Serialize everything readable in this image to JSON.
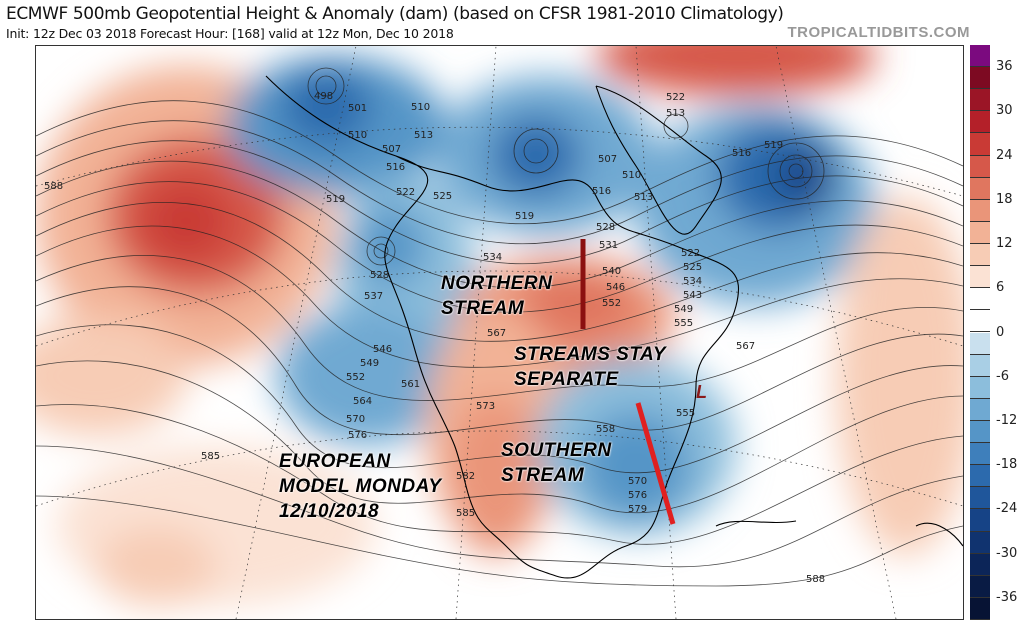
{
  "header": {
    "title": "ECMWF 500mb Geopotential Height & Anomaly (dam) (based on CFSR 1981-2010 Climatology)",
    "subtitle": "Init: 12z Dec 03 2018   Forecast Hour: [168]   valid at 12z Mon, Dec 10 2018",
    "brand": "TROPICALTIDBITS.COM"
  },
  "colorbar": {
    "ticks": [
      "36",
      "30",
      "24",
      "18",
      "12",
      "6",
      "0",
      "-6",
      "-12",
      "-18",
      "-24",
      "-30",
      "-36"
    ],
    "colors": [
      "#7b0a7f",
      "#7d0a22",
      "#9b1526",
      "#b42029",
      "#c93a35",
      "#d6584a",
      "#e0765f",
      "#ea9579",
      "#f2b296",
      "#f7ccb5",
      "#fbe2d4",
      "#ffffff",
      "#ffffff",
      "#c9e0ee",
      "#a9cfe5",
      "#8cbedc",
      "#6fa9d2",
      "#5595c7",
      "#3e7fbb",
      "#2c6aad",
      "#1f569b",
      "#164386",
      "#10336f",
      "#0c2558",
      "#091b44",
      "#071334"
    ]
  },
  "map": {
    "contour_labels": [
      "498",
      "501",
      "510",
      "507",
      "510",
      "513",
      "516",
      "519",
      "522",
      "525",
      "528",
      "534",
      "537",
      "546",
      "549",
      "552",
      "564",
      "561",
      "567",
      "570",
      "573",
      "576",
      "585",
      "582",
      "579",
      "576",
      "570",
      "558",
      "555",
      "567",
      "522",
      "513",
      "516",
      "519",
      "507",
      "510",
      "513",
      "516",
      "519",
      "528",
      "531",
      "540",
      "546",
      "552",
      "522",
      "525",
      "534",
      "543",
      "549",
      "555",
      "588",
      "588",
      "585"
    ],
    "annotations": {
      "northern": [
        "NORTHERN",
        "STREAM"
      ],
      "separate": [
        "STREAMS STAY",
        "SEPARATE"
      ],
      "southern": [
        "SOUTHERN",
        "STREAM"
      ],
      "european": [
        "EUROPEAN",
        "MODEL MONDAY",
        "12/10/2018"
      ],
      "low": "L"
    },
    "marker_colors": {
      "northern_line": "#8b1010",
      "southern_line": "#e02020",
      "low": "#8b1a1a"
    }
  }
}
